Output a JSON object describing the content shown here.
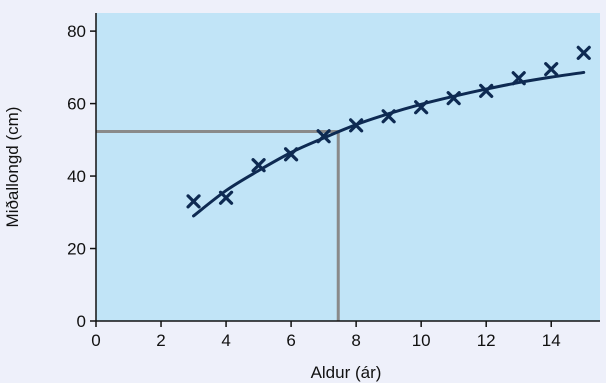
{
  "chart_data": {
    "type": "scatter",
    "xlabel": "Aldur (ár)",
    "ylabel": "Miðallongd (cm)",
    "xlim": [
      0,
      15.5
    ],
    "ylim": [
      0,
      85
    ],
    "x_ticks": [
      0,
      2,
      4,
      6,
      8,
      10,
      12,
      14
    ],
    "y_ticks": [
      0,
      20,
      40,
      60,
      80
    ],
    "grid": false,
    "series": [
      {
        "kind": "markers",
        "marker": "x",
        "points": [
          {
            "x": 3,
            "y": 33
          },
          {
            "x": 4,
            "y": 34
          },
          {
            "x": 5,
            "y": 43
          },
          {
            "x": 6,
            "y": 46
          },
          {
            "x": 7,
            "y": 51
          },
          {
            "x": 8,
            "y": 54
          },
          {
            "x": 9,
            "y": 56.5
          },
          {
            "x": 10,
            "y": 59
          },
          {
            "x": 11,
            "y": 61.5
          },
          {
            "x": 12,
            "y": 63.5
          },
          {
            "x": 13,
            "y": 67
          },
          {
            "x": 14,
            "y": 69.5
          },
          {
            "x": 15,
            "y": 74
          }
        ]
      },
      {
        "kind": "fitted-curve",
        "points": [
          {
            "x": 3,
            "y": 29
          },
          {
            "x": 4,
            "y": 36
          },
          {
            "x": 5,
            "y": 41.5
          },
          {
            "x": 6,
            "y": 46.5
          },
          {
            "x": 7,
            "y": 50.5
          },
          {
            "x": 8,
            "y": 54.2
          },
          {
            "x": 9,
            "y": 57.2
          },
          {
            "x": 10,
            "y": 59.8
          },
          {
            "x": 11,
            "y": 62
          },
          {
            "x": 12,
            "y": 64
          },
          {
            "x": 13,
            "y": 65.8
          },
          {
            "x": 14,
            "y": 67.3
          },
          {
            "x": 15,
            "y": 68.6
          }
        ]
      }
    ],
    "reference_lines": {
      "x": 7.45,
      "y": 52.3
    }
  },
  "colors": {
    "page": "#eef0fa",
    "plot_area": "#c1e4f7",
    "axis": "#111111",
    "marker": "#0e2a52",
    "curve": "#0e2a52",
    "reference": "#8a8a8a"
  }
}
